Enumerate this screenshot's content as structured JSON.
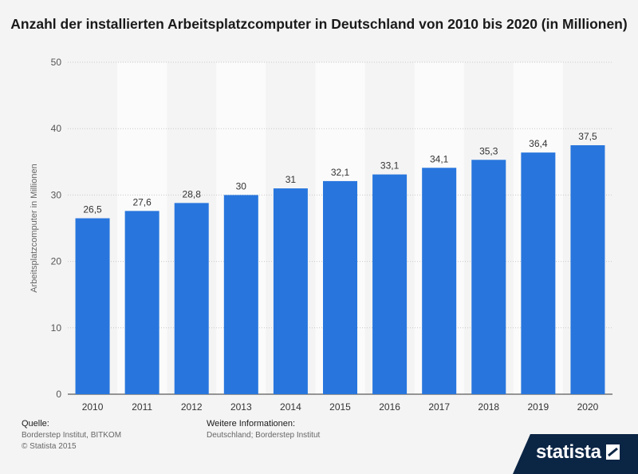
{
  "title": "Anzahl der installierten Arbeitsplatzcomputer in Deutschland von 2010 bis 2020 (in Millionen)",
  "chart_data": {
    "type": "bar",
    "title": "Anzahl der installierten Arbeitsplatzcomputer in Deutschland von 2010 bis 2020 (in Millionen)",
    "xlabel": "",
    "ylabel": "Arbeitsplatzcomputer in Millionen",
    "ylim": [
      0,
      50
    ],
    "yticks": [
      0,
      10,
      20,
      30,
      40,
      50
    ],
    "categories": [
      "2010",
      "2011",
      "2012",
      "2013",
      "2014",
      "2015",
      "2016",
      "2017",
      "2018",
      "2019",
      "2020"
    ],
    "values": [
      26.5,
      27.6,
      28.8,
      30,
      31,
      32.1,
      33.1,
      34.1,
      35.3,
      36.4,
      37.5
    ],
    "data_labels": [
      "26,5",
      "27,6",
      "28,8",
      "30",
      "31",
      "32,1",
      "33,1",
      "34,1",
      "35,3",
      "36,4",
      "37,5"
    ],
    "bar_color": "#2876dd",
    "grid": true
  },
  "footer": {
    "source_label": "Quelle:",
    "source_lines": [
      "Borderstep Institut, BITKOM",
      "© Statista 2015"
    ],
    "info_label": "Weitere Informationen:",
    "info_lines": [
      "Deutschland; Borderstep Institut"
    ]
  },
  "brand": {
    "name": "statista",
    "icon": "statista-logo-icon"
  }
}
